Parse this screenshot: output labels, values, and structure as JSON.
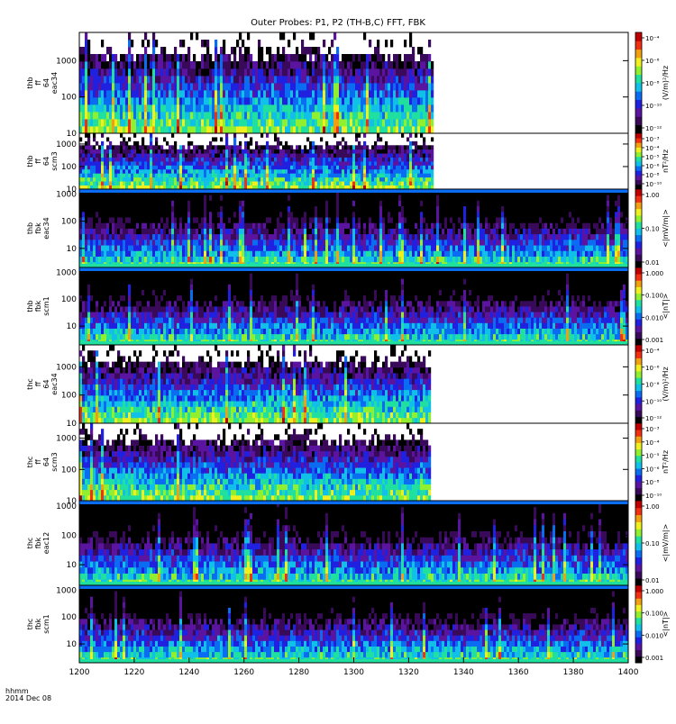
{
  "figure": {
    "title": "Outer Probes: P1, P2 (TH-B,C) FFT, FBK",
    "time_unit_label": "hhmm",
    "date_label": "2014 Dec 08"
  },
  "chart_data": {
    "type": "heatmap",
    "x_axis": {
      "range": [
        1200,
        1400
      ],
      "ticks": [
        "1200",
        "1220",
        "1240",
        "1260",
        "1280",
        "1300",
        "1320",
        "1340",
        "1360",
        "1380",
        "1400"
      ]
    },
    "panels": [
      {
        "id": "thb-ff-eac34",
        "ylabel": [
          "thb",
          "ff",
          "64",
          "eac34"
        ],
        "yticks": [
          "10",
          "100",
          "1000"
        ],
        "ylog": [
          10,
          6000
        ],
        "colorbar_label": "(V/m)²/Hz",
        "colorbar_ticks": [
          "10⁻⁴",
          "10⁻⁶",
          "10⁻⁸",
          "10⁻¹⁰",
          "10⁻¹²"
        ],
        "data_end_time": 1329
      },
      {
        "id": "thb-ff-scm3",
        "ylabel": [
          "thb",
          "ff",
          "64",
          "scm3"
        ],
        "yticks": [
          "10",
          "100",
          "1000"
        ],
        "ylog": [
          10,
          3000
        ],
        "colorbar_label": "nT²/Hz",
        "colorbar_ticks": [
          "10⁻³",
          "10⁻⁴",
          "10⁻⁵",
          "10⁻⁶",
          "10⁻⁸",
          "10⁻¹⁰"
        ],
        "data_end_time": 1329
      },
      {
        "id": "thb-fbk-eac34",
        "ylabel": [
          "thb",
          "fbk",
          "eac34"
        ],
        "yticks": [
          "10",
          "100",
          "1000"
        ],
        "ylog": [
          2,
          1500
        ],
        "colorbar_label": "<|mV/m|>",
        "colorbar_ticks": [
          "1.00",
          "0.10",
          "0.01"
        ],
        "data_end_time": 1400
      },
      {
        "id": "thb-fbk-scm1",
        "ylabel": [
          "thb",
          "fbk",
          "scm1"
        ],
        "yticks": [
          "10",
          "100",
          "1000"
        ],
        "ylog": [
          2,
          1500
        ],
        "colorbar_label": "<|nT|>",
        "colorbar_ticks": [
          "1.000",
          "0.100",
          "0.010",
          "0.001"
        ],
        "data_end_time": 1400
      },
      {
        "id": "thc-ff-eac34",
        "ylabel": [
          "thc",
          "ff",
          "64",
          "eac34"
        ],
        "yticks": [
          "10",
          "100",
          "1000"
        ],
        "ylog": [
          10,
          6000
        ],
        "colorbar_label": "(V/m)²/Hz",
        "colorbar_ticks": [
          "10⁻⁴",
          "10⁻⁶",
          "10⁻⁸",
          "10⁻¹⁰",
          "10⁻¹²"
        ],
        "data_end_time": 1328
      },
      {
        "id": "thc-ff-scm3",
        "ylabel": [
          "thc",
          "ff",
          "64",
          "scm3"
        ],
        "yticks": [
          "10",
          "100",
          "1000"
        ],
        "ylog": [
          10,
          3000
        ],
        "colorbar_label": "nT²/Hz",
        "colorbar_ticks": [
          "10⁻³",
          "10⁻⁴",
          "10⁻⁵",
          "10⁻⁶",
          "10⁻⁸",
          "10⁻¹⁰"
        ],
        "data_end_time": 1328
      },
      {
        "id": "thc-fbk-eac12",
        "ylabel": [
          "thc",
          "fbk",
          "eac12"
        ],
        "yticks": [
          "10",
          "100",
          "1000"
        ],
        "ylog": [
          2,
          1500
        ],
        "colorbar_label": "<|mV/m|>",
        "colorbar_ticks": [
          "1.00",
          "0.10",
          "0.01"
        ],
        "data_end_time": 1400
      },
      {
        "id": "thc-fbk-scm1",
        "ylabel": [
          "thc",
          "fbk",
          "scm1"
        ],
        "yticks": [
          "10",
          "100",
          "1000"
        ],
        "ylog": [
          2,
          1500
        ],
        "colorbar_label": "<|nT|>",
        "colorbar_ticks": [
          "1.000",
          "0.100",
          "0.010",
          "0.001"
        ],
        "data_end_time": 1400
      }
    ],
    "colormap": [
      "#000000",
      "#3a0a5a",
      "#5a14a0",
      "#2020e0",
      "#0a6cf0",
      "#10c0e8",
      "#20e0a0",
      "#90f030",
      "#f0f020",
      "#f0a010",
      "#f03010",
      "#c00000"
    ]
  }
}
